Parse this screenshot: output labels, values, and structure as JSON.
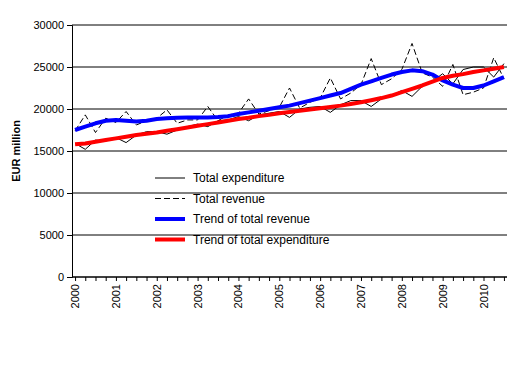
{
  "chart_data": {
    "type": "line",
    "y_label": "EUR million",
    "categories": [
      "2000",
      null,
      null,
      null,
      "2001",
      null,
      null,
      null,
      "2002",
      null,
      null,
      null,
      "2003",
      null,
      null,
      null,
      "2004",
      null,
      null,
      null,
      "2005",
      null,
      null,
      null,
      "2006",
      null,
      null,
      null,
      "2007",
      null,
      null,
      null,
      "2008",
      null,
      null,
      null,
      "2009",
      null,
      null,
      null,
      "2010",
      null,
      null
    ],
    "series": [
      {
        "name": "Total expenditure",
        "color": "#000000",
        "line_style": "solid",
        "values": [
          15900,
          15200,
          16300,
          16200,
          16600,
          16000,
          16900,
          17300,
          17300,
          17000,
          17500,
          17900,
          18200,
          17900,
          18600,
          18700,
          19100,
          18600,
          19300,
          19500,
          19700,
          19000,
          20000,
          20200,
          20300,
          19600,
          20500,
          21000,
          21000,
          20300,
          21200,
          21600,
          22200,
          21500,
          22700,
          23300,
          24200,
          23000,
          24700,
          25000,
          25000,
          23800,
          25400
        ]
      },
      {
        "name": "Total revenue",
        "color": "#000000",
        "line_style": "dashed",
        "values": [
          17400,
          19300,
          17200,
          18900,
          18400,
          19700,
          18100,
          18600,
          18900,
          19900,
          18300,
          18700,
          18700,
          20300,
          18600,
          19300,
          19500,
          21200,
          19400,
          19800,
          20200,
          22500,
          20100,
          20800,
          21300,
          23700,
          21200,
          21900,
          22900,
          26000,
          22900,
          23600,
          24700,
          27800,
          24300,
          23800,
          22700,
          25300,
          21700,
          22000,
          22500,
          26100,
          23600
        ]
      },
      {
        "name": "Trend of total revenue",
        "color": "#0000ff",
        "line_style": "solid",
        "values": [
          17500,
          17900,
          18300,
          18600,
          18700,
          18600,
          18500,
          18600,
          18800,
          18900,
          18950,
          19000,
          19000,
          19000,
          19050,
          19150,
          19400,
          19600,
          19800,
          20000,
          20200,
          20400,
          20700,
          21000,
          21300,
          21600,
          21900,
          22400,
          22900,
          23300,
          23700,
          24100,
          24400,
          24600,
          24500,
          24100,
          23400,
          22900,
          22500,
          22500,
          22800,
          23300,
          23800
        ]
      },
      {
        "name": "Trend of total expenditure",
        "color": "#ff0000",
        "line_style": "solid",
        "values": [
          15800,
          15900,
          16100,
          16300,
          16500,
          16700,
          16900,
          17050,
          17200,
          17400,
          17600,
          17800,
          18000,
          18200,
          18400,
          18600,
          18800,
          18950,
          19150,
          19300,
          19500,
          19650,
          19800,
          19950,
          20100,
          20250,
          20400,
          20600,
          20800,
          21050,
          21300,
          21600,
          22000,
          22400,
          22800,
          23250,
          23700,
          23950,
          24150,
          24400,
          24600,
          24800,
          25000
        ]
      }
    ],
    "ylim": [
      0,
      30000
    ],
    "yticks": [
      0,
      5000,
      10000,
      15000,
      20000,
      25000,
      30000
    ],
    "grid": true,
    "legend": "lower left"
  }
}
